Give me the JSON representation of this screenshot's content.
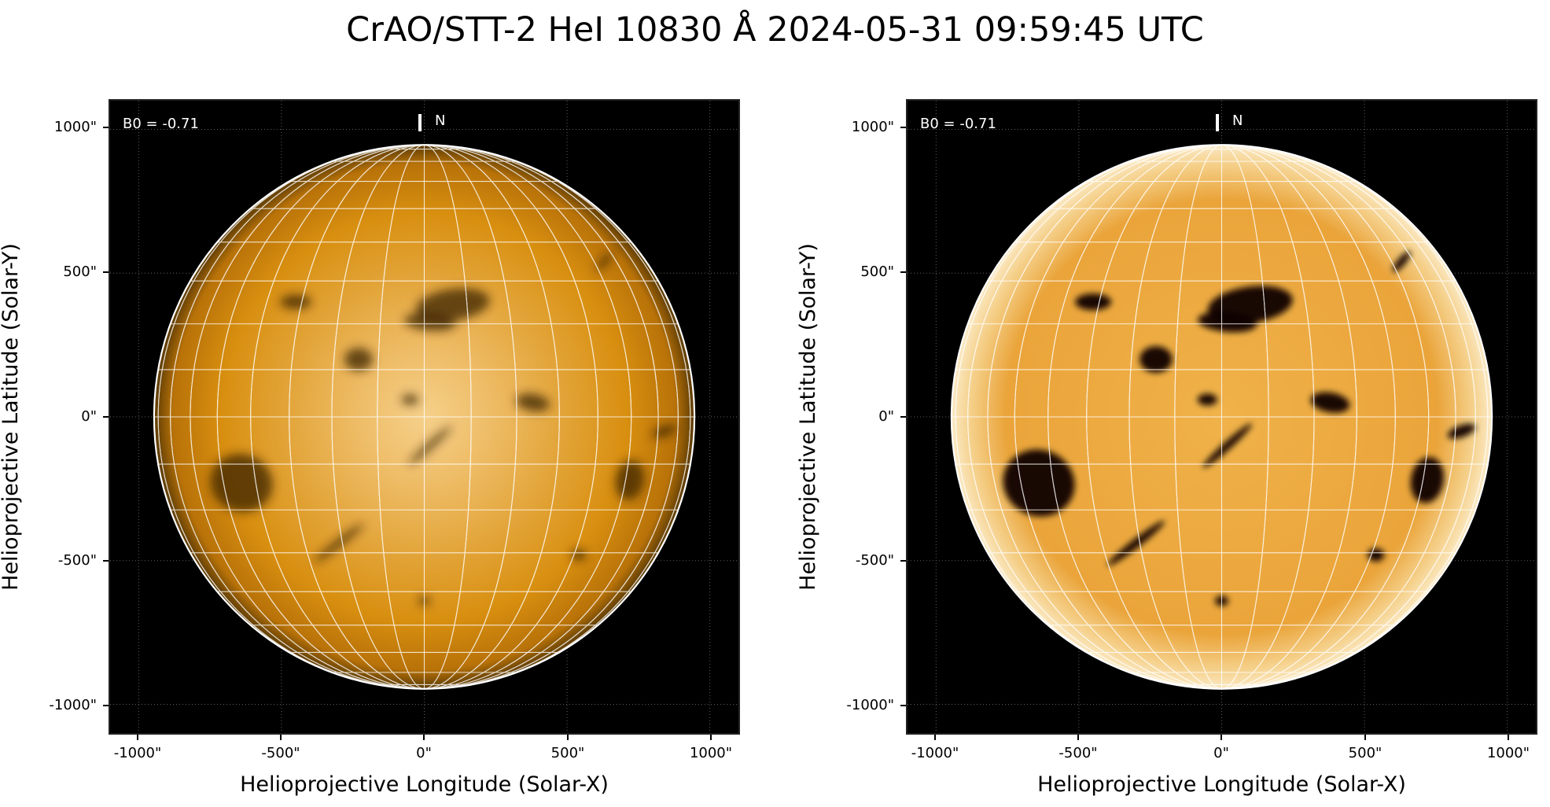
{
  "figure": {
    "title": "CrAO/STT-2 HeI 10830 Å 2024-05-31 09:59:45 UTC"
  },
  "colors": {
    "background": "#000000",
    "disk_base": "#d88f10",
    "disk_light": "#f5d08a",
    "grid": "#ffffff",
    "limb": "#ffffff"
  },
  "panels": [
    {
      "id": "left",
      "corner_label": "B0 = -0.71",
      "north_label": "N",
      "xlabel": "Helioprojective Longitude (Solar-X)",
      "ylabel": "Helioprojective Latitude (Solar-Y)",
      "xticks": [
        "-1000\"",
        "-500\"",
        "0\"",
        "500\"",
        "1000\""
      ],
      "yticks": [
        "1000\"",
        "500\"",
        "0\"",
        "-500\"",
        "-1000\""
      ],
      "xtick_values": [
        -1000,
        -500,
        0,
        500,
        1000
      ],
      "ytick_values": [
        1000,
        500,
        0,
        -500,
        -1000
      ],
      "range": [
        -1100,
        1100
      ],
      "disk_radius_arcsec": 946,
      "contrast": "normal",
      "grid_spacing_deg": 10
    },
    {
      "id": "right",
      "corner_label": "B0 = -0.71",
      "north_label": "N",
      "xlabel": "Helioprojective Longitude (Solar-X)",
      "ylabel": "Helioprojective Latitude (Solar-Y)",
      "xticks": [
        "-1000\"",
        "-500\"",
        "0\"",
        "500\"",
        "1000\""
      ],
      "yticks": [
        "1000\"",
        "500\"",
        "0\"",
        "-500\"",
        "-1000\""
      ],
      "xtick_values": [
        -1000,
        -500,
        0,
        500,
        1000
      ],
      "ytick_values": [
        1000,
        500,
        0,
        -500,
        -1000
      ],
      "range": [
        -1100,
        1100
      ],
      "disk_radius_arcsec": 946,
      "contrast": "enhanced",
      "grid_spacing_deg": 10
    }
  ],
  "features": [
    {
      "name": "filament-north-center",
      "x": 100,
      "y": 390,
      "rx": 130,
      "ry": 55,
      "angle": -8
    },
    {
      "name": "filament-north-left",
      "x": -450,
      "y": 400,
      "rx": 55,
      "ry": 25,
      "angle": 0
    },
    {
      "name": "dark-region-west-center",
      "x": 20,
      "y": 330,
      "rx": 90,
      "ry": 30,
      "angle": 5
    },
    {
      "name": "dark-patch-mid",
      "x": -230,
      "y": 200,
      "rx": 50,
      "ry": 40,
      "angle": 0
    },
    {
      "name": "dark-patch-east",
      "x": 380,
      "y": 50,
      "rx": 60,
      "ry": 30,
      "angle": 10
    },
    {
      "name": "dark-patch-center-left",
      "x": -50,
      "y": 60,
      "rx": 30,
      "ry": 18,
      "angle": 0
    },
    {
      "name": "filament-east-limb",
      "x": 840,
      "y": -50,
      "rx": 45,
      "ry": 18,
      "angle": -20
    },
    {
      "name": "dark-region-southwest",
      "x": -640,
      "y": -230,
      "rx": 110,
      "ry": 100,
      "angle": 20
    },
    {
      "name": "filament-diagonal-center",
      "x": 20,
      "y": -100,
      "rx": 100,
      "ry": 12,
      "angle": -42
    },
    {
      "name": "filament-diagonal-south",
      "x": -300,
      "y": -440,
      "rx": 110,
      "ry": 13,
      "angle": -38
    },
    {
      "name": "dark-region-east-south",
      "x": 720,
      "y": -220,
      "rx": 50,
      "ry": 70,
      "angle": 10
    },
    {
      "name": "filament-northeast",
      "x": 630,
      "y": 540,
      "rx": 40,
      "ry": 12,
      "angle": -50
    },
    {
      "name": "dark-patch-southeast",
      "x": 540,
      "y": -480,
      "rx": 25,
      "ry": 20,
      "angle": 0
    },
    {
      "name": "dark-patch-south",
      "x": 0,
      "y": -640,
      "rx": 20,
      "ry": 15,
      "angle": 0
    }
  ]
}
